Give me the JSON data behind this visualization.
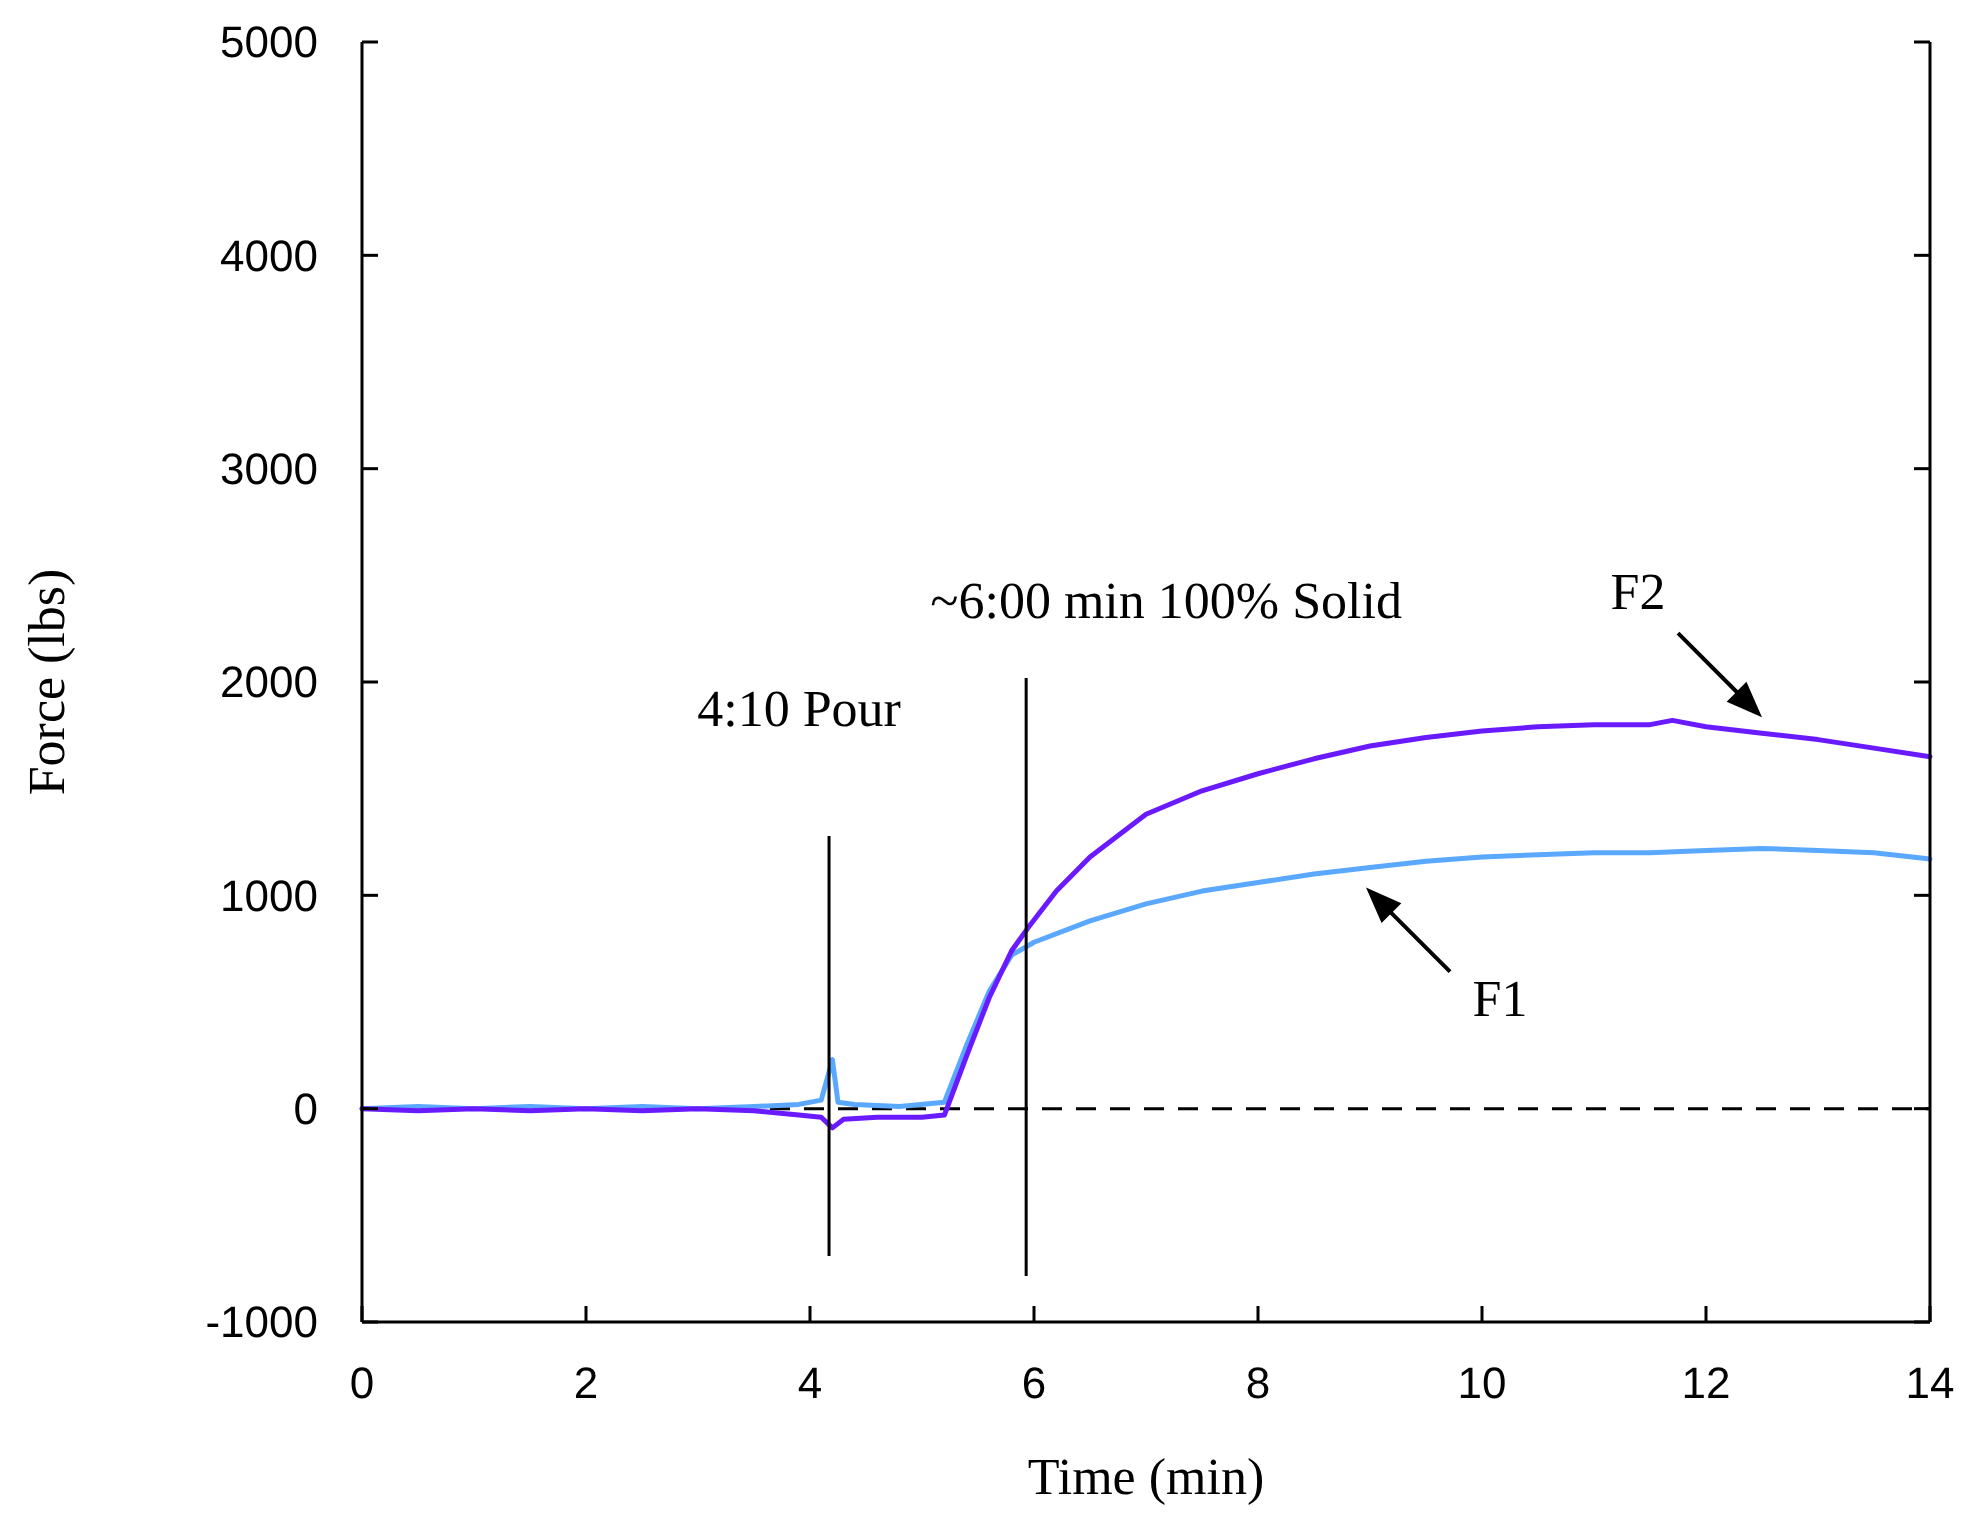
{
  "chart_data": {
    "type": "line",
    "xlabel": "Time (min)",
    "ylabel": "Force (lbs)",
    "xlim": [
      0,
      14
    ],
    "ylim": [
      -1000,
      5000
    ],
    "xticks": [
      0,
      2,
      4,
      6,
      8,
      10,
      12,
      14
    ],
    "yticks": [
      -1000,
      0,
      1000,
      2000,
      3000,
      4000,
      5000
    ],
    "grid": false,
    "marker": "none",
    "line_style": "solid",
    "series": [
      {
        "name": "F1",
        "color": "#5aa8ff",
        "x": [
          0,
          0.5,
          1,
          1.5,
          2,
          2.5,
          3,
          3.5,
          3.9,
          4.1,
          4.2,
          4.25,
          4.4,
          4.8,
          5.2,
          5.4,
          5.6,
          5.8,
          6,
          6.5,
          7,
          7.5,
          8,
          8.5,
          9,
          9.5,
          10,
          10.5,
          11,
          11.5,
          12,
          12.5,
          13,
          13.5,
          14
        ],
        "values": [
          0,
          10,
          0,
          10,
          0,
          10,
          0,
          10,
          20,
          40,
          230,
          30,
          20,
          10,
          30,
          300,
          550,
          720,
          780,
          880,
          960,
          1020,
          1060,
          1100,
          1130,
          1160,
          1180,
          1190,
          1200,
          1200,
          1210,
          1220,
          1210,
          1200,
          1170
        ]
      },
      {
        "name": "F2",
        "color": "#6a1aff",
        "x": [
          0,
          0.5,
          1,
          1.5,
          2,
          2.5,
          3,
          3.5,
          3.9,
          4.1,
          4.2,
          4.3,
          4.6,
          5,
          5.2,
          5.4,
          5.6,
          5.8,
          5.95,
          6.2,
          6.5,
          7,
          7.5,
          8,
          8.5,
          9,
          9.5,
          10,
          10.5,
          11,
          11.5,
          11.7,
          12,
          12.5,
          13,
          13.5,
          14
        ],
        "values": [
          0,
          -10,
          0,
          -10,
          0,
          -10,
          0,
          -10,
          -30,
          -40,
          -90,
          -50,
          -40,
          -40,
          -30,
          250,
          520,
          740,
          850,
          1020,
          1180,
          1380,
          1490,
          1570,
          1640,
          1700,
          1740,
          1770,
          1790,
          1800,
          1800,
          1820,
          1790,
          1760,
          1730,
          1690,
          1650
        ]
      }
    ],
    "ref_lines": [
      {
        "axis": "y",
        "value": 0,
        "line_style": "dashed",
        "color": "#000000"
      },
      {
        "axis": "x",
        "value": 4.17,
        "label": "4:10 Pour",
        "color": "#000000"
      },
      {
        "axis": "x",
        "value": 5.93,
        "label": "~6:00 min 100% Solid",
        "color": "#000000"
      }
    ]
  }
}
